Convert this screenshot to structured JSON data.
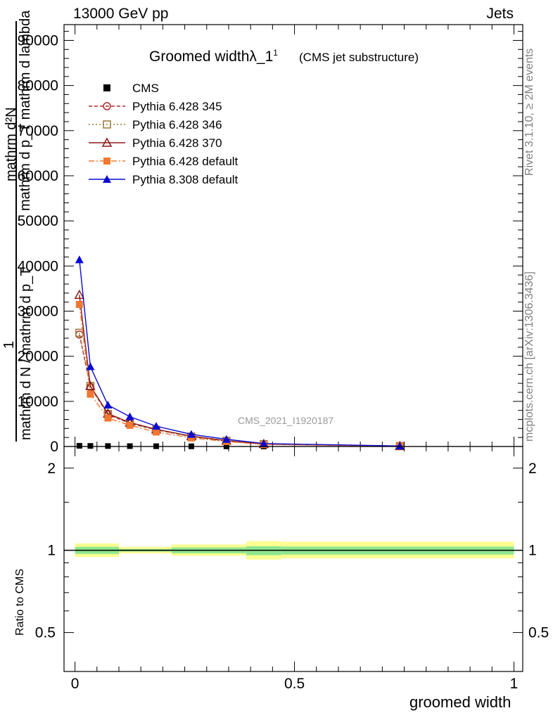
{
  "header": {
    "left": "13000 GeV pp",
    "right": "Jets"
  },
  "title": {
    "main": "Groomed widthλ_1",
    "sup": "1",
    "sub": "(CMS jet substructure)"
  },
  "watermark": "CMS_2021_I1920187",
  "side": {
    "rivet": "Rivet 3.1.10, ≥ 2M events",
    "mcplots": "mcplots.cern.ch [arXiv:1306.3436]"
  },
  "ylabel_main": {
    "line1": "mathrm d²N",
    "line2": "mathrm d p_T mathrm d lambda",
    "one": "1",
    "line3": "mathrm d N / mathrm d p_T"
  },
  "ylabel_ratio": "Ratio to CMS",
  "xlabel": "groomed width",
  "chart_data": [
    {
      "type": "line",
      "name": "main",
      "xlim": [
        -0.025,
        1.02
      ],
      "ylim": [
        0,
        93500
      ],
      "yticks": [
        {
          "v": 0,
          "label": "0"
        },
        {
          "v": 10000,
          "label": "10000"
        },
        {
          "v": 20000,
          "label": "20000"
        },
        {
          "v": 30000,
          "label": "30000"
        },
        {
          "v": 40000,
          "label": "40000"
        },
        {
          "v": 50000,
          "label": "50000"
        },
        {
          "v": 60000,
          "label": "60000"
        },
        {
          "v": 70000,
          "label": "70000"
        },
        {
          "v": 80000,
          "label": "80000"
        },
        {
          "v": 90000,
          "label": "90000"
        }
      ],
      "legend_position": "top-left",
      "x": [
        0.01,
        0.035,
        0.075,
        0.125,
        0.185,
        0.265,
        0.345,
        0.43,
        0.74
      ],
      "series": [
        {
          "name": "CMS",
          "color": "#000000",
          "marker": "square-filled",
          "dash": "none",
          "line": false,
          "values": [
            150,
            120,
            100,
            80,
            60,
            40,
            25,
            15,
            5
          ]
        },
        {
          "name": "Pythia 6.428 345",
          "color": "#b22c2c",
          "marker": "circle-open",
          "dash": "5,3",
          "line": true,
          "values": [
            24800,
            13200,
            7100,
            5100,
            3700,
            2200,
            1200,
            500,
            90
          ]
        },
        {
          "name": "Pythia 6.428 346",
          "color": "#9b7a3c",
          "marker": "square-open",
          "dash": "2,3",
          "line": true,
          "values": [
            25200,
            13400,
            7200,
            5200,
            3700,
            2200,
            1250,
            520,
            95
          ]
        },
        {
          "name": "Pythia 6.428 370",
          "color": "#8b1a1a",
          "marker": "triangle-open",
          "dash": "none",
          "line": true,
          "values": [
            33600,
            13400,
            7300,
            5300,
            3800,
            2300,
            1300,
            550,
            95
          ]
        },
        {
          "name": "Pythia 6.428 default",
          "color": "#f07830",
          "marker": "square-filled",
          "dash": "8,3,2,3",
          "line": true,
          "values": [
            31500,
            11600,
            6300,
            4700,
            3200,
            1900,
            1100,
            450,
            80
          ]
        },
        {
          "name": "Pythia 8.308 default",
          "color": "#0a0ad0",
          "marker": "triangle-filled",
          "dash": "none",
          "line": true,
          "values": [
            41400,
            17700,
            9200,
            6600,
            4500,
            2700,
            1600,
            650,
            110
          ]
        }
      ]
    },
    {
      "type": "area",
      "name": "ratio",
      "xlim": [
        -0.025,
        1.02
      ],
      "ylim": [
        0.36,
        2.4
      ],
      "log_y": true,
      "xticks": [
        {
          "v": 0,
          "label": "0"
        },
        {
          "v": 0.5,
          "label": "0.5"
        },
        {
          "v": 1,
          "label": "1"
        }
      ],
      "yticks": [
        {
          "v": 0.5,
          "label": "0.5"
        },
        {
          "v": 1,
          "label": "1"
        },
        {
          "v": 2,
          "label": "2"
        }
      ],
      "bands": [
        {
          "x0": 0.0,
          "x1": 0.1,
          "outer": [
            0.945,
            1.06
          ],
          "inner": [
            0.97,
            1.03
          ]
        },
        {
          "x0": 0.1,
          "x1": 0.22,
          "outer": [
            0.975,
            1.03
          ],
          "inner": [
            0.99,
            1.012
          ]
        },
        {
          "x0": 0.22,
          "x1": 0.39,
          "outer": [
            0.955,
            1.05
          ],
          "inner": [
            0.975,
            1.025
          ]
        },
        {
          "x0": 0.39,
          "x1": 0.47,
          "outer": [
            0.925,
            1.08
          ],
          "inner": [
            0.96,
            1.035
          ]
        },
        {
          "x0": 0.47,
          "x1": 1.0,
          "outer": [
            0.935,
            1.075
          ],
          "inner": [
            0.965,
            1.032
          ]
        }
      ],
      "colors": {
        "outer": "#fdfd90",
        "inner": "#8ee68e"
      }
    }
  ]
}
